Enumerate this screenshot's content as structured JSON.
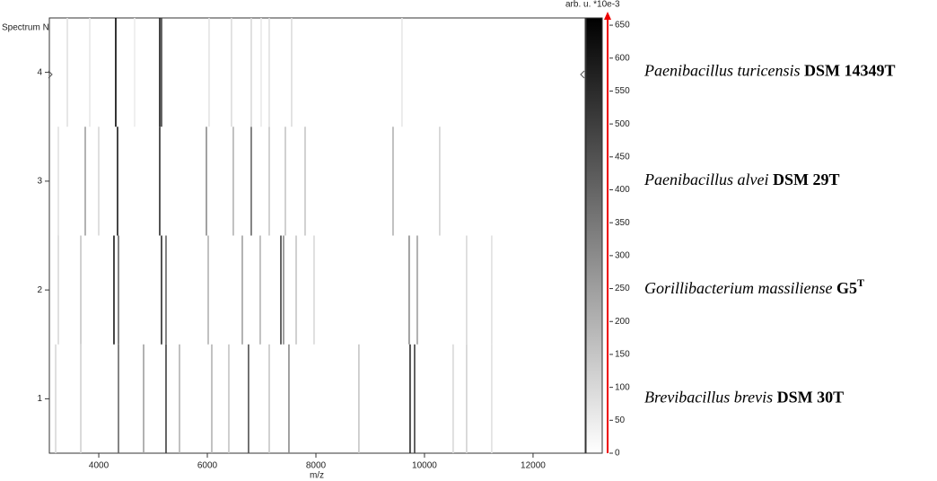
{
  "chart_data": {
    "type": "gel",
    "ylabel": "Spectrum Number",
    "xlabel": "m/z",
    "colorbar_label": "arb. u. *10e-3",
    "xlim": [
      3090,
      12960
    ],
    "xticks": [
      4000,
      6000,
      8000,
      10000,
      12000
    ],
    "ylim": [
      0.5,
      4.5
    ],
    "yticks": [
      1,
      2,
      3,
      4
    ],
    "clim": [
      0,
      661
    ],
    "cticks": [
      0,
      50,
      100,
      150,
      200,
      250,
      300,
      350,
      400,
      450,
      500,
      550,
      600,
      650
    ],
    "series": [
      {
        "spectrum": 1,
        "species": "Brevibacillus brevis",
        "strain": "DSM 30T",
        "mz": [
          3206,
          3669,
          4363,
          4826,
          5239,
          5487,
          6082,
          6396,
          6759,
          7140,
          7503,
          8792,
          9735,
          9818,
          10528,
          10776,
          11239
        ],
        "intensity": [
          100,
          120,
          400,
          250,
          500,
          200,
          200,
          150,
          450,
          150,
          300,
          150,
          550,
          500,
          100,
          120,
          80
        ]
      },
      {
        "spectrum": 2,
        "species": "Gorillibacterium massiliense",
        "strain": "G5",
        "superscript": "T",
        "mz": [
          3255,
          3669,
          4280,
          4363,
          5156,
          5239,
          6016,
          6644,
          6974,
          7355,
          7404,
          7636,
          7966,
          9718,
          9867,
          10776,
          11239
        ],
        "intensity": [
          100,
          150,
          600,
          400,
          550,
          400,
          200,
          250,
          200,
          500,
          300,
          150,
          100,
          300,
          250,
          100,
          80
        ]
      },
      {
        "spectrum": 3,
        "species": "Paenibacillus alvei",
        "strain": "DSM 29T",
        "mz": [
          3255,
          3751,
          3999,
          4346,
          5123,
          5983,
          6478,
          6809,
          7140,
          7437,
          7801,
          9421,
          10280
        ],
        "intensity": [
          80,
          250,
          100,
          600,
          550,
          300,
          200,
          400,
          150,
          150,
          150,
          200,
          120
        ]
      },
      {
        "spectrum": 4,
        "species": "Paenibacillus turicensis",
        "strain": "DSM 14349T",
        "mz": [
          3421,
          3834,
          4313,
          4660,
          5123,
          5156,
          6032,
          6445,
          6809,
          6991,
          7140,
          7553,
          9586
        ],
        "intensity": [
          80,
          60,
          650,
          50,
          600,
          500,
          70,
          90,
          100,
          60,
          80,
          90,
          60
        ]
      }
    ]
  }
}
